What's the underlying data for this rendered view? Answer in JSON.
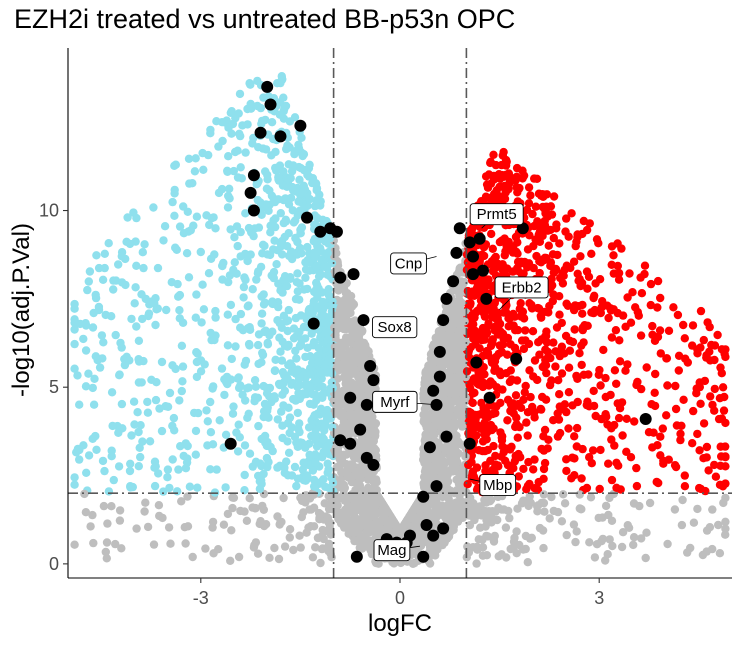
{
  "chart_data": {
    "type": "scatter",
    "title": "EZH2i treated vs untreated BB-p53n OPC",
    "xlabel": "logFC",
    "ylabel": "-log10(adj.P.Val)",
    "xlim": [
      -5.0,
      5.0
    ],
    "ylim": [
      -0.4,
      14.6
    ],
    "x_ticks": [
      -3,
      0,
      3
    ],
    "y_ticks": [
      0,
      5,
      10
    ],
    "grid": false,
    "thresholds": {
      "logFC": [
        -1,
        1
      ],
      "neg_log10_padj": 2
    },
    "colors": {
      "down": "#8fe0ed",
      "up": "#ff0000",
      "not_significant": "#bebebe",
      "highlighted": "#000000",
      "threshold_line": "#595959"
    },
    "series": [
      {
        "group": "highlighted",
        "points": [
          [
            -2.0,
            13.5
          ],
          [
            -1.95,
            13.0
          ],
          [
            -2.1,
            12.2
          ],
          [
            -1.5,
            12.4
          ],
          [
            -1.8,
            12.1
          ],
          [
            -2.2,
            11.0
          ],
          [
            -2.25,
            10.5
          ],
          [
            -2.2,
            10.0
          ],
          [
            -1.4,
            9.8
          ],
          [
            -1.2,
            9.4
          ],
          [
            -1.05,
            9.5
          ],
          [
            -0.95,
            9.4
          ],
          [
            -0.9,
            8.1
          ],
          [
            -0.7,
            8.2
          ],
          [
            -0.55,
            6.9
          ],
          [
            -1.3,
            6.8
          ],
          [
            -0.45,
            5.6
          ],
          [
            -0.4,
            5.2
          ],
          [
            -0.75,
            4.7
          ],
          [
            -0.5,
            4.5
          ],
          [
            -0.9,
            3.5
          ],
          [
            -0.75,
            3.4
          ],
          [
            -0.5,
            3.0
          ],
          [
            -0.4,
            2.8
          ],
          [
            -0.6,
            3.8
          ],
          [
            -2.55,
            3.4
          ],
          [
            -0.65,
            0.2
          ],
          [
            -0.2,
            0.7
          ],
          [
            -0.1,
            0.5
          ],
          [
            -0.05,
            0.6
          ],
          [
            0.05,
            0.3
          ],
          [
            0.1,
            0.6
          ],
          [
            0.15,
            0.8
          ],
          [
            0.4,
            1.1
          ],
          [
            0.5,
            0.8
          ],
          [
            0.65,
            1.0
          ],
          [
            0.35,
            0.2
          ],
          [
            0.55,
            4.5
          ],
          [
            0.5,
            4.9
          ],
          [
            0.6,
            5.3
          ],
          [
            0.6,
            6.0
          ],
          [
            0.65,
            6.9
          ],
          [
            0.7,
            7.5
          ],
          [
            0.8,
            8.0
          ],
          [
            0.85,
            8.8
          ],
          [
            0.9,
            9.5
          ],
          [
            1.05,
            9.1
          ],
          [
            1.1,
            8.7
          ],
          [
            1.2,
            9.2
          ],
          [
            1.1,
            8.2
          ],
          [
            1.25,
            8.3
          ],
          [
            1.3,
            7.5
          ],
          [
            1.15,
            5.7
          ],
          [
            1.35,
            4.7
          ],
          [
            1.05,
            3.4
          ],
          [
            0.7,
            3.6
          ],
          [
            0.45,
            3.3
          ],
          [
            0.55,
            2.2
          ],
          [
            0.35,
            1.9
          ],
          [
            1.75,
            5.8
          ],
          [
            1.85,
            9.5
          ],
          [
            3.7,
            4.1
          ]
        ]
      }
    ],
    "gene_labels": [
      {
        "name": "Prmt5",
        "x": 1.23,
        "y": 9.5
      },
      {
        "name": "Cnp",
        "x": 0.55,
        "y": 8.7
      },
      {
        "name": "Erbb2",
        "x": 1.5,
        "y": 7.2
      },
      {
        "name": "Sox8",
        "x": 0.1,
        "y": 6.5
      },
      {
        "name": "Myrf",
        "x": 0.6,
        "y": 4.5
      },
      {
        "name": "Mbp",
        "x": 1.05,
        "y": 2.4
      },
      {
        "name": "Mag",
        "x": 0.3,
        "y": 0.5
      }
    ]
  }
}
